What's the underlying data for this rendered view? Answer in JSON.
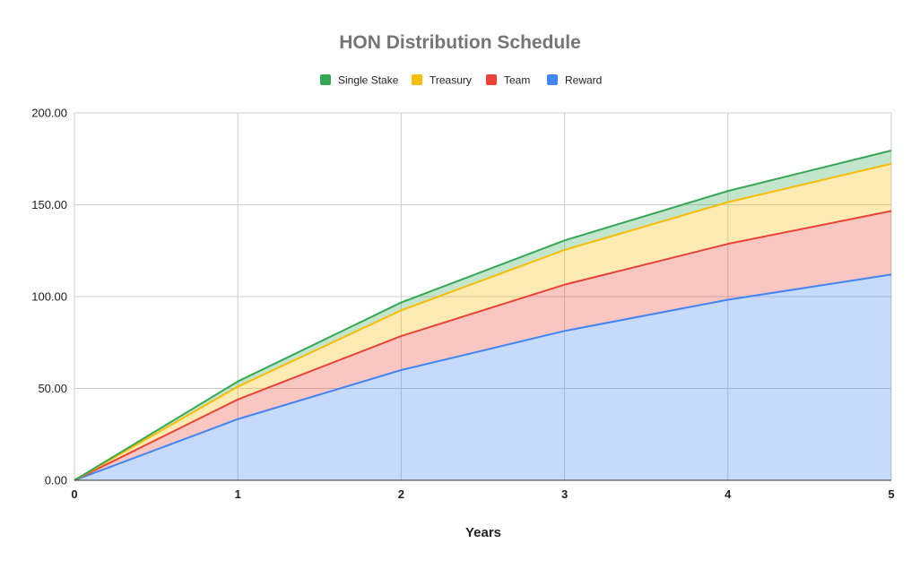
{
  "chart_data": {
    "type": "area",
    "stacked": true,
    "title": "HON Distribution Schedule",
    "xlabel": "Years",
    "ylabel": "",
    "x": [
      0,
      1,
      2,
      3,
      4,
      5
    ],
    "x_tick_labels": [
      "0",
      "1",
      "2",
      "3",
      "4",
      "5"
    ],
    "y_tick_labels": [
      "0.00",
      "50.00",
      "100.00",
      "150.00",
      "200.00"
    ],
    "y_ticks": [
      0,
      50,
      100,
      150,
      200
    ],
    "ylim": [
      0,
      200
    ],
    "xlim": [
      0,
      5
    ],
    "grid": true,
    "legend_position": "top",
    "series": [
      {
        "name": "Reward",
        "color": "#4285F4",
        "values": [
          0,
          33.3,
          60,
          81.3,
          98.3,
          112
        ]
      },
      {
        "name": "Team",
        "color": "#EA4335",
        "values": [
          0,
          10.7,
          18.5,
          25.2,
          30.4,
          34.6
        ]
      },
      {
        "name": "Treasury",
        "color": "#FBBC04",
        "values": [
          0,
          7,
          14,
          18.9,
          22.7,
          25.7
        ]
      },
      {
        "name": "Single Stake",
        "color": "#34A853",
        "values": [
          0,
          2.8,
          4.3,
          5.2,
          6.1,
          7.2
        ]
      }
    ],
    "legend_order": [
      "Single Stake",
      "Treasury",
      "Team",
      "Reward"
    ]
  }
}
